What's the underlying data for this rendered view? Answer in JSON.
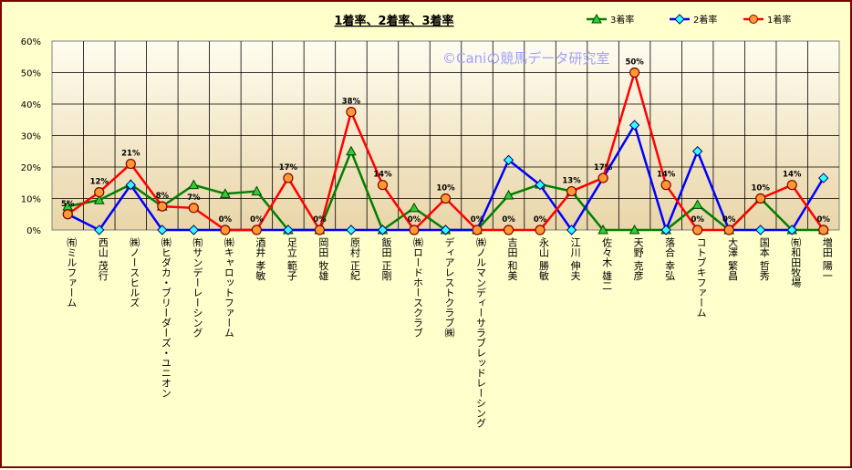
{
  "chart_data": {
    "type": "line",
    "title": "1着率、2着率、3着率",
    "watermark": "©Caniの競馬データ研究室",
    "yticks": [
      "0%",
      "10%",
      "20%",
      "30%",
      "40%",
      "50%",
      "60%"
    ],
    "ylim": [
      0,
      60
    ],
    "grid": true,
    "legend_position": "top-right",
    "categories": [
      "㈲ミルファーム",
      "西山 茂行",
      "㈱ノースヒルズ",
      "㈱ヒダカ・ブリーダーズ・ユニオン",
      "㈲サンデーレーシング",
      "㈱キャロットファーム",
      "酒井 孝敏",
      "足立 範子",
      "岡田 牧雄",
      "原村 正紀",
      "飯田 正剛",
      "㈱ロードホースクラブ",
      "ディアレストクラブ㈱",
      "㈱ノルマンディーサラブレッドレーシング",
      "吉田 和美",
      "永山 勝敏",
      "江川 伸夫",
      "佐々木 雄二",
      "天野 克彦",
      "落合 幸弘",
      "コトブキファーム",
      "大澤 繁昌",
      "国本 哲秀",
      "㈲和田牧場",
      "増田 陽一"
    ],
    "series": [
      {
        "name": "3着率",
        "color": "#008000",
        "marker": "triangle",
        "values": [
          7.5,
          9.5,
          14.5,
          7.5,
          14.3,
          11.5,
          12.3,
          0,
          0,
          25,
          0,
          7,
          0,
          0,
          11,
          14.5,
          12.3,
          0,
          0,
          0,
          8,
          0,
          10,
          0,
          0
        ]
      },
      {
        "name": "2着率",
        "color": "#0000ff",
        "marker": "diamond",
        "values": [
          5,
          0,
          14.3,
          0,
          0,
          0,
          0,
          0,
          0,
          0,
          0,
          0,
          0,
          0,
          22.2,
          14.3,
          0,
          16.5,
          33.3,
          0,
          25,
          0,
          0,
          0,
          16.5
        ]
      },
      {
        "name": "1着率",
        "color": "#ff0000",
        "marker": "circle",
        "values": [
          5,
          12,
          21,
          7.5,
          7,
          0,
          0,
          16.5,
          0,
          37.5,
          14.3,
          0,
          10,
          0,
          0,
          0,
          12.3,
          16.5,
          50,
          14.3,
          0,
          0,
          10,
          14.3,
          0
        ]
      }
    ],
    "data_labels": [
      "5%",
      "12%",
      "21%",
      "8%",
      "7%",
      "0%",
      "0%",
      "17%",
      "0%",
      "38%",
      "14%",
      "0%",
      "10%",
      "0%",
      "0%",
      "0%",
      "13%",
      "17%",
      "50%",
      "14%",
      "0%",
      "0%",
      "10%",
      "14%",
      "0%"
    ]
  }
}
